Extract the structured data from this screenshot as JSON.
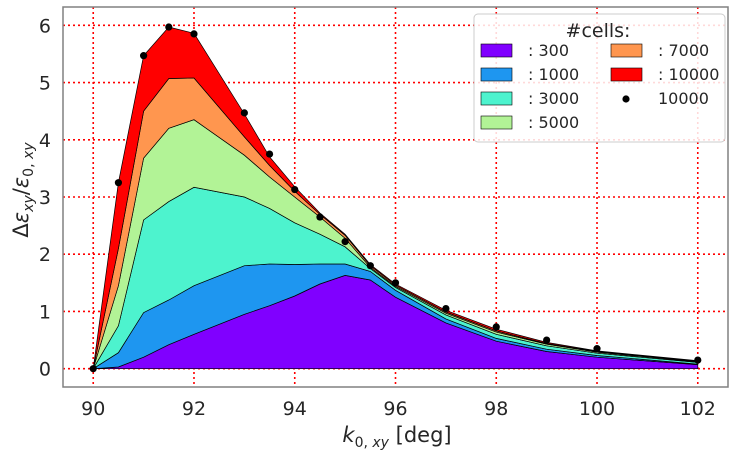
{
  "chart_data": {
    "type": "area",
    "x": [
      90,
      90.5,
      91,
      91.5,
      92,
      93,
      93.5,
      94,
      94.5,
      95,
      95.5,
      96,
      97,
      98,
      99,
      100,
      102
    ],
    "series": [
      {
        "name": ": 300",
        "color": "#8000ff",
        "values": [
          0,
          0.03,
          0.2,
          0.42,
          0.6,
          0.95,
          1.1,
          1.27,
          1.48,
          1.63,
          1.55,
          1.25,
          0.8,
          0.48,
          0.3,
          0.2,
          0.07
        ]
      },
      {
        "name": ": 1000",
        "color": "#1e96f0",
        "values": [
          0,
          0.25,
          0.78,
          0.78,
          0.85,
          0.85,
          0.73,
          0.55,
          0.35,
          0.2,
          0.15,
          0.12,
          0.07,
          0.05,
          0.04,
          0.03,
          0.01
        ]
      },
      {
        "name": ": 3000",
        "color": "#4df3ce",
        "values": [
          0,
          0.47,
          1.62,
          1.72,
          1.72,
          1.2,
          0.97,
          0.73,
          0.52,
          0.3,
          0.05,
          0.05,
          0.07,
          0.07,
          0.06,
          0.04,
          0.03
        ]
      },
      {
        "name": ": 5000",
        "color": "#b2f396",
        "values": [
          0,
          0.7,
          1.08,
          1.28,
          1.18,
          0.73,
          0.55,
          0.45,
          0.3,
          0.15,
          0.02,
          0.02,
          0.03,
          0.04,
          0.03,
          0.02,
          0.01
        ]
      },
      {
        "name": ": 7000",
        "color": "#ff964f",
        "values": [
          0,
          0.65,
          0.82,
          0.87,
          0.73,
          0.32,
          0.2,
          0.1,
          0.05,
          0.05,
          0.03,
          0.02,
          0.02,
          0.02,
          0.01,
          0.01,
          0.01
        ]
      },
      {
        "name": ": 10000",
        "color": "#ff0000",
        "values": [
          0,
          1.15,
          0.97,
          0.9,
          0.78,
          0.4,
          0.15,
          0.08,
          0.02,
          0.02,
          0.02,
          0.02,
          0.03,
          0.03,
          0.02,
          0.01,
          0.01
        ]
      }
    ],
    "points": {
      "name": "10000",
      "color": "#000000",
      "x": [
        90,
        90.5,
        91,
        91.5,
        92,
        93,
        93.5,
        94,
        94.5,
        95,
        95.5,
        96,
        97,
        98,
        99,
        100,
        102
      ],
      "y": [
        0,
        3.25,
        5.47,
        5.97,
        5.85,
        4.47,
        3.75,
        3.13,
        2.65,
        2.22,
        1.8,
        1.5,
        1.05,
        0.73,
        0.5,
        0.35,
        0.15
      ]
    },
    "xlabel": "k0,xy [deg]",
    "ylabel": "Δεxy/ε0,xy",
    "xlim": [
      89.4,
      102.6
    ],
    "ylim": [
      -0.32,
      6.32
    ],
    "xticks": [
      90,
      92,
      94,
      96,
      98,
      100,
      102
    ],
    "yticks": [
      0,
      1,
      2,
      3,
      4,
      5,
      6
    ],
    "grid": true,
    "grid_color": "#ff0000",
    "legend_title": "#cells:",
    "legend_position": "top-right",
    "legend_columns": 2
  }
}
